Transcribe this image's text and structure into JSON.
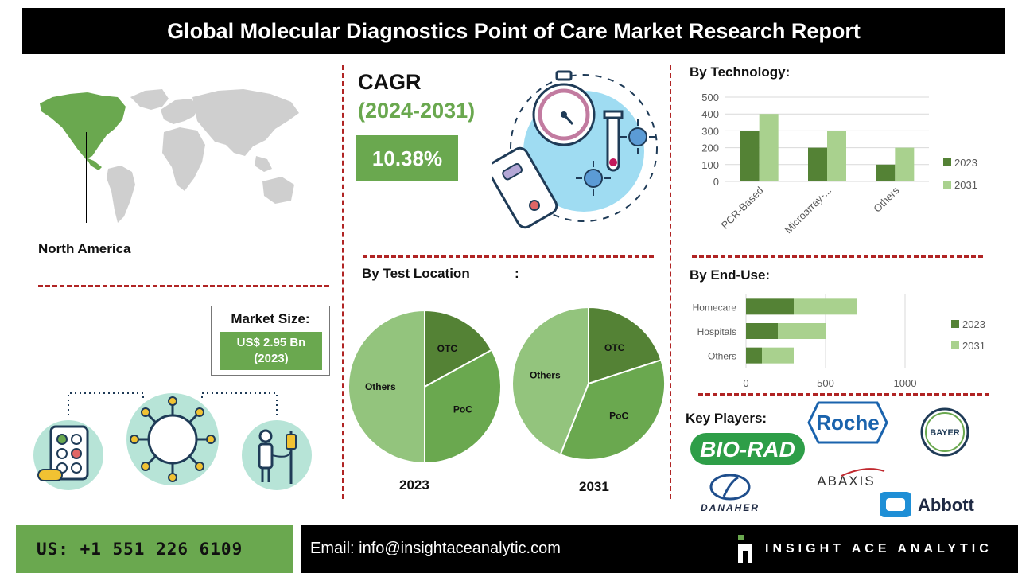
{
  "header": {
    "title": "Global Molecular Diagnostics Point of Care Market Research Report"
  },
  "region": {
    "label": "North America"
  },
  "market_size": {
    "title": "Market Size:",
    "value": "US$ 2.95 Bn",
    "year": "(2023)"
  },
  "cagr": {
    "title": "CAGR",
    "period": "(2024-2031)",
    "value": "10.38%"
  },
  "technology": {
    "title": "By Technology:"
  },
  "test_location": {
    "title": "By Test Location",
    "colon": ":",
    "year_left": "2023",
    "year_right": "2031"
  },
  "end_use": {
    "title": "By  End-Use:"
  },
  "key_players": {
    "title": "Key Players:",
    "logos": [
      "Roche",
      "BAYER",
      "BIO-RAD",
      "ABAXIS",
      "DANAHER",
      "Abbott"
    ]
  },
  "footer": {
    "phone": "US: +1 551 226 6109",
    "email": "Email: info@insightaceanalytic.com",
    "brand": "INSIGHT ACE ANALYTIC"
  },
  "colors": {
    "dark_green": "#548235",
    "mid_green": "#6aa84f",
    "light_green": "#a9d18e",
    "pie_light": "#93c47d",
    "accent_red": "#b02424"
  },
  "chart_data": [
    {
      "type": "bar",
      "title": "By Technology:",
      "categories": [
        "PCR-Based",
        "Microarray-...",
        "Others"
      ],
      "series": [
        {
          "name": "2023",
          "values": [
            300,
            200,
            100
          ]
        },
        {
          "name": "2031",
          "values": [
            400,
            300,
            200
          ]
        }
      ],
      "ylim": [
        0,
        500
      ],
      "yticks": [
        0,
        100,
        200,
        300,
        400,
        500
      ],
      "grid": true,
      "legend": "right"
    },
    {
      "type": "pie",
      "title": "By Test Location",
      "year": "2023",
      "slices": [
        {
          "label": "OTC",
          "value": 17
        },
        {
          "label": "PoC",
          "value": 33
        },
        {
          "label": "Others",
          "value": 50
        }
      ]
    },
    {
      "type": "pie",
      "year": "2031",
      "slices": [
        {
          "label": "OTC",
          "value": 20
        },
        {
          "label": "PoC",
          "value": 36
        },
        {
          "label": "Others",
          "value": 44
        }
      ]
    },
    {
      "type": "bar",
      "orientation": "horizontal",
      "stacked": true,
      "title": "By  End-Use:",
      "categories": [
        "Homecare",
        "Hospitals",
        "Others"
      ],
      "series": [
        {
          "name": "2023",
          "values": [
            300,
            200,
            100
          ]
        },
        {
          "name": "2031",
          "values": [
            400,
            300,
            200
          ]
        }
      ],
      "xlim": [
        0,
        1200
      ],
      "xticks": [
        0,
        500,
        1000
      ],
      "grid": true,
      "legend": "right"
    }
  ]
}
